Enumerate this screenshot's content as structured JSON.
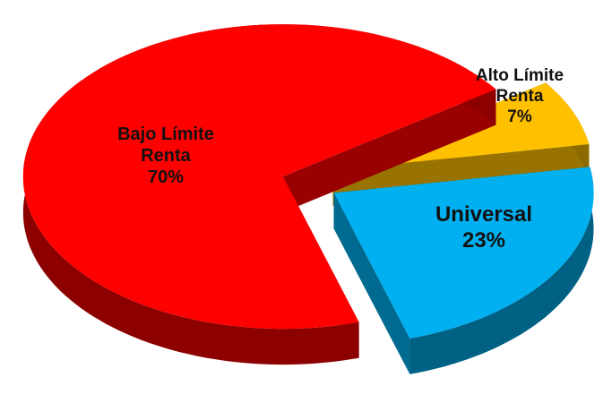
{
  "chart_data": {
    "type": "pie",
    "categories": [
      "Bajo Límite Renta",
      "Alto Límite Renta",
      "Universal"
    ],
    "values": [
      70,
      7,
      23
    ],
    "value_labels": [
      "70%",
      "7%",
      "23%"
    ],
    "colors": [
      "#ff0000",
      "#ffc000",
      "#00b0f0"
    ]
  }
}
